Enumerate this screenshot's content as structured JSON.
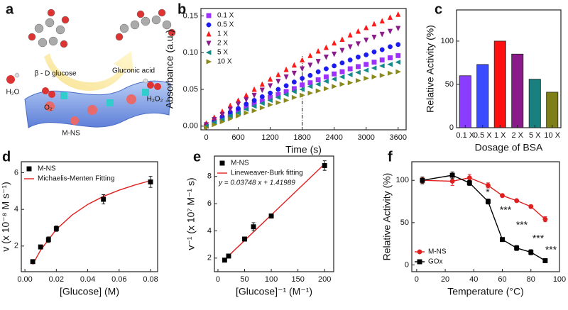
{
  "diagram": {
    "panel_label": "a",
    "substrate": "β - D glucose",
    "product": "Gluconic acid",
    "water": "H₂O",
    "oxygen": "O₂",
    "peroxide": "H₂O₂",
    "catalyst": "M-NS"
  },
  "chart_data": [
    {
      "type": "scatter",
      "panel_label": "b",
      "xlabel": "Time (s)",
      "ylabel": "Absorbance (a.u.)",
      "xlim": [
        -100,
        3750
      ],
      "xticks": [
        0,
        600,
        1200,
        1800,
        2400,
        3000,
        3600
      ],
      "ylim": [
        -0.005,
        0.16
      ],
      "yticks": [
        {
          "value": 0,
          "label": "0.00"
        },
        0.05,
        {
          "value": 0.1,
          "label": "0.10"
        },
        0.15
      ],
      "vline": 1800,
      "legend": "upper left",
      "x": [
        0,
        150,
        300,
        450,
        600,
        750,
        900,
        1050,
        1200,
        1350,
        1500,
        1650,
        1800,
        1950,
        2100,
        2250,
        2400,
        2550,
        2700,
        2850,
        3000,
        3150,
        3300,
        3450,
        3600
      ],
      "series": [
        {
          "name": "0.1 X",
          "color": "#9b30ff",
          "marker": "square",
          "values": [
            0,
            0.005,
            0.01,
            0.015,
            0.02,
            0.025,
            0.03,
            0.034,
            0.039,
            0.043,
            0.047,
            0.051,
            0.056,
            0.059,
            0.063,
            0.067,
            0.071,
            0.074,
            0.078,
            0.081,
            0.084,
            0.087,
            0.09,
            0.093,
            0.096
          ]
        },
        {
          "name": "0.5 X",
          "color": "#1c1cf0",
          "marker": "circle",
          "values": [
            0.001,
            0.007,
            0.013,
            0.019,
            0.024,
            0.03,
            0.035,
            0.04,
            0.045,
            0.05,
            0.055,
            0.06,
            0.065,
            0.069,
            0.074,
            0.078,
            0.082,
            0.086,
            0.09,
            0.094,
            0.097,
            0.101,
            0.104,
            0.108,
            0.111
          ]
        },
        {
          "name": "1 X",
          "color": "#ff1a1a",
          "marker": "triangle-up",
          "values": [
            0.004,
            0.012,
            0.02,
            0.028,
            0.035,
            0.042,
            0.05,
            0.057,
            0.064,
            0.07,
            0.077,
            0.083,
            0.09,
            0.096,
            0.102,
            0.107,
            0.113,
            0.118,
            0.124,
            0.129,
            0.134,
            0.139,
            0.143,
            0.148,
            0.152
          ]
        },
        {
          "name": "2 X",
          "color": "#8b1a8b",
          "marker": "triangle-down",
          "values": [
            0.002,
            0.009,
            0.016,
            0.023,
            0.03,
            0.036,
            0.042,
            0.049,
            0.055,
            0.061,
            0.067,
            0.072,
            0.078,
            0.083,
            0.088,
            0.094,
            0.098,
            0.103,
            0.108,
            0.112,
            0.117,
            0.121,
            0.125,
            0.129,
            0.133
          ]
        },
        {
          "name": "5 X",
          "color": "#138a8a",
          "marker": "triangle-left",
          "values": [
            0,
            0.005,
            0.009,
            0.014,
            0.018,
            0.023,
            0.027,
            0.031,
            0.035,
            0.039,
            0.043,
            0.047,
            0.05,
            0.054,
            0.057,
            0.061,
            0.064,
            0.067,
            0.07,
            0.073,
            0.076,
            0.079,
            0.082,
            0.084,
            0.087
          ]
        },
        {
          "name": "10 X",
          "color": "#8a8a1a",
          "marker": "triangle-right",
          "values": [
            -0.002,
            0.002,
            0.006,
            0.01,
            0.014,
            0.018,
            0.021,
            0.025,
            0.029,
            0.032,
            0.035,
            0.039,
            0.042,
            0.045,
            0.048,
            0.051,
            0.054,
            0.057,
            0.059,
            0.062,
            0.065,
            0.067,
            0.069,
            0.072,
            0.074
          ]
        }
      ]
    },
    {
      "type": "bar",
      "panel_label": "c",
      "xlabel": "Dosage of BSA",
      "ylabel": "Relative Activity (%)",
      "categories": [
        "0.1 X",
        "0.5 X",
        "1 X",
        "2 X",
        "5 X",
        "10 X"
      ],
      "values": [
        60,
        73,
        100,
        85,
        56,
        41
      ],
      "colors": [
        "#8b3dff",
        "#3b4cff",
        "#ff1010",
        "#8b1a8b",
        "#1a7f7f",
        "#7f7f1a"
      ],
      "ylim": [
        0,
        136
      ],
      "yticks": [
        0,
        50,
        100
      ]
    },
    {
      "type": "scatter",
      "panel_label": "d",
      "xlabel": "[Glucose] (M)",
      "ylabel": "v (x 10⁻⁸ M s⁻¹)",
      "xlim": [
        -0.0023,
        0.0845
      ],
      "xticks": [
        {
          "value": 0,
          "label": "0.00"
        },
        0.02,
        0.04,
        0.06,
        0.08
      ],
      "ylim": [
        0.6,
        6.6
      ],
      "yticks": [
        2,
        4,
        6
      ],
      "legend": "upper left",
      "series": [
        {
          "name": "M-NS",
          "color": "#000000",
          "marker": "square",
          "x": [
            0.005,
            0.01,
            0.015,
            0.02,
            0.05,
            0.08
          ],
          "values": [
            1.15,
            1.95,
            2.35,
            2.95,
            4.55,
            5.5
          ],
          "errors": [
            0.05,
            0.08,
            0.15,
            0.15,
            0.25,
            0.3
          ]
        },
        {
          "name": "Michaelis-Menten Fitting",
          "color": "#e02020",
          "style": "line",
          "x": [
            0.005,
            0.01,
            0.02,
            0.03,
            0.04,
            0.05,
            0.06,
            0.07,
            0.08
          ],
          "values": [
            1.0,
            1.78,
            2.91,
            3.69,
            4.27,
            4.71,
            5.05,
            5.33,
            5.57
          ]
        }
      ]
    },
    {
      "type": "scatter",
      "panel_label": "e",
      "xlabel": "[Glucose]⁻¹ (M⁻¹)",
      "ylabel": "v⁻¹ (x 10⁷ M⁻¹ s)",
      "xlim": [
        -6.6,
        217
      ],
      "xticks": [
        0,
        50,
        100,
        150,
        200
      ],
      "ylim": [
        1,
        9.5
      ],
      "yticks": [
        2,
        4,
        6,
        8
      ],
      "legend": "upper left",
      "annotation": "y = 0.03748 x + 1.41989",
      "series": [
        {
          "name": "M-NS",
          "color": "#000000",
          "marker": "square",
          "x": [
            12.5,
            20,
            50,
            66.7,
            100,
            200
          ],
          "values": [
            1.85,
            2.15,
            3.4,
            4.3,
            5.1,
            8.8
          ],
          "errors": [
            0.1,
            0.1,
            0.15,
            0.3,
            0.15,
            0.35
          ]
        },
        {
          "name": "Lineweaver-Burk fitting",
          "color": "#e02020",
          "style": "line",
          "x": [
            12.5,
            200
          ],
          "values": [
            1.89,
            8.92
          ]
        }
      ]
    },
    {
      "type": "line",
      "panel_label": "f",
      "xlabel": "Temperature (°C)",
      "ylabel": "Relative Activity (%)",
      "xlim": [
        -3.4,
        100
      ],
      "xticks": [
        0,
        20,
        40,
        60,
        80,
        100
      ],
      "ylim": [
        -8,
        122
      ],
      "yticks": [
        0,
        50,
        100
      ],
      "legend": "lower left",
      "annotations": [
        "*",
        "***",
        "***",
        "***",
        "***"
      ],
      "series": [
        {
          "name": "M-NS",
          "color": "#e02020",
          "marker": "circle",
          "x": [
            4,
            25,
            37,
            50,
            60,
            70,
            80,
            90
          ],
          "values": [
            100,
            99,
            103,
            94,
            82,
            76,
            69,
            54
          ],
          "errors": [
            3,
            5,
            4,
            3,
            2,
            2,
            2,
            3
          ]
        },
        {
          "name": "GOx",
          "color": "#000000",
          "marker": "square",
          "x": [
            4,
            25,
            37,
            50,
            60,
            70,
            80,
            90
          ],
          "values": [
            100,
            106,
            97,
            75,
            30,
            20,
            15,
            5
          ],
          "errors": [
            4,
            4,
            3,
            3,
            2,
            3,
            3,
            2
          ]
        }
      ]
    }
  ]
}
